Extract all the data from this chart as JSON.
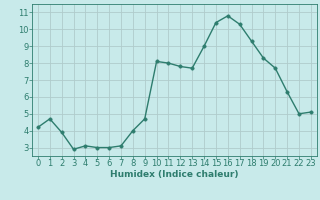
{
  "x": [
    0,
    1,
    2,
    3,
    4,
    5,
    6,
    7,
    8,
    9,
    10,
    11,
    12,
    13,
    14,
    15,
    16,
    17,
    18,
    19,
    20,
    21,
    22,
    23
  ],
  "y": [
    4.2,
    4.7,
    3.9,
    2.9,
    3.1,
    3.0,
    3.0,
    3.1,
    4.0,
    4.7,
    8.1,
    8.0,
    7.8,
    7.7,
    9.0,
    10.4,
    10.8,
    10.3,
    9.3,
    8.3,
    7.7,
    6.3,
    5.0,
    5.1
  ],
  "xlabel": "Humidex (Indice chaleur)",
  "line_color": "#2e7d6e",
  "marker_color": "#2e7d6e",
  "bg_color": "#c8eaea",
  "grid_color": "#b0cccc",
  "xlim": [
    -0.5,
    23.5
  ],
  "ylim": [
    2.5,
    11.5
  ],
  "yticks": [
    3,
    4,
    5,
    6,
    7,
    8,
    9,
    10,
    11
  ],
  "xticks": [
    0,
    1,
    2,
    3,
    4,
    5,
    6,
    7,
    8,
    9,
    10,
    11,
    12,
    13,
    14,
    15,
    16,
    17,
    18,
    19,
    20,
    21,
    22,
    23
  ],
  "xlabel_fontsize": 6.5,
  "tick_fontsize": 6.0,
  "line_width": 1.0,
  "marker_size": 2.5
}
